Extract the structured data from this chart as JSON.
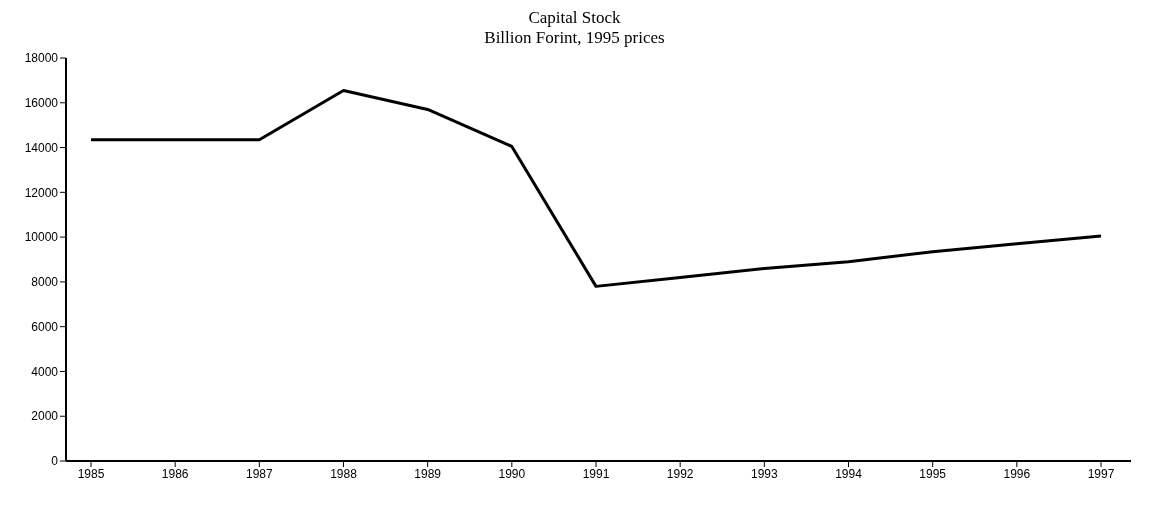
{
  "chart_data": {
    "type": "line",
    "title": "Capital Stock",
    "subtitle": "Billion Forint, 1995 prices",
    "categories": [
      "1985",
      "1986",
      "1987",
      "1988",
      "1989",
      "1990",
      "1991",
      "1992",
      "1993",
      "1994",
      "1995",
      "1996",
      "1997"
    ],
    "series": [
      {
        "color": "#000000",
        "values": [
          14350,
          14350,
          14350,
          16550,
          15700,
          14050,
          7800,
          8200,
          8600,
          8900,
          9350,
          9700,
          10050
        ]
      }
    ],
    "ylim": [
      0,
      18000
    ],
    "yticks": [
      0,
      2000,
      4000,
      6000,
      8000,
      10000,
      12000,
      14000,
      16000,
      18000
    ],
    "marker": "none",
    "line_style": "solid"
  }
}
